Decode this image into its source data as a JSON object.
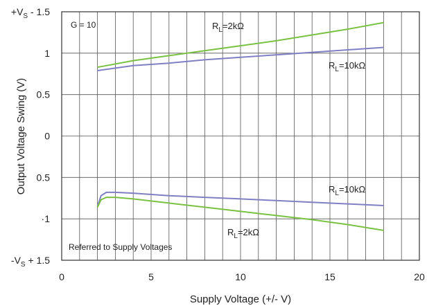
{
  "chart_data": {
    "type": "line",
    "xlabel": "Supply Voltage (+/- V)",
    "ylabel": "Output Voltage Swing (V)",
    "xlim": [
      0,
      20
    ],
    "ylim": [
      -1.5,
      1.5
    ],
    "grid": true,
    "x_ticks": [
      "0",
      "5",
      "10",
      "15",
      "20"
    ],
    "y_tick_values": [
      1.5,
      1,
      0.5,
      0,
      -0.5,
      -1,
      -1.5
    ],
    "y_tick_labels": [
      {
        "main": "+V",
        "sub": "S",
        "tail": " - 1.5"
      },
      {
        "main": "1"
      },
      {
        "main": "0.5"
      },
      {
        "main": "0"
      },
      {
        "main": "0.5"
      },
      {
        "main": "·1"
      },
      {
        "main": "-V",
        "sub": "S",
        "tail": " + 1.5"
      }
    ],
    "annotations": {
      "gain": "G = 10",
      "note": "Referred to Supply Voltages"
    },
    "series": [
      {
        "color": "#7ac142",
        "label": {
          "main": "R",
          "sub": "L",
          "tail": "=2kΩ"
        },
        "x": [
          2,
          4,
          6,
          8,
          10,
          12,
          14,
          16,
          18
        ],
        "y": [
          0.83,
          0.91,
          0.97,
          1.03,
          1.09,
          1.15,
          1.22,
          1.29,
          1.37
        ]
      },
      {
        "color": "#7f7fc4",
        "label": {
          "main": "R",
          "sub": "L",
          "tail": "=10kΩ"
        },
        "x": [
          2,
          4,
          6,
          8,
          10,
          12,
          14,
          16,
          18
        ],
        "y": [
          0.79,
          0.85,
          0.88,
          0.92,
          0.95,
          0.98,
          1.01,
          1.04,
          1.07
        ]
      },
      {
        "color": "#7f7fc4",
        "label": {
          "main": "R",
          "sub": "L",
          "tail": "=10kΩ"
        },
        "x": [
          2,
          2.2,
          2.5,
          3,
          4,
          6,
          8,
          10,
          12,
          14,
          16,
          18
        ],
        "y": [
          -0.85,
          -0.72,
          -0.68,
          -0.68,
          -0.69,
          -0.72,
          -0.74,
          -0.76,
          -0.78,
          -0.8,
          -0.82,
          -0.84
        ]
      },
      {
        "color": "#7ac142",
        "label": {
          "main": "R",
          "sub": "L",
          "tail": "=2kΩ"
        },
        "x": [
          2,
          2.2,
          2.5,
          3,
          4,
          6,
          8,
          10,
          12,
          14,
          16,
          18
        ],
        "y": [
          -0.86,
          -0.77,
          -0.74,
          -0.74,
          -0.76,
          -0.81,
          -0.86,
          -0.91,
          -0.96,
          -1.01,
          -1.07,
          -1.14
        ]
      }
    ]
  }
}
